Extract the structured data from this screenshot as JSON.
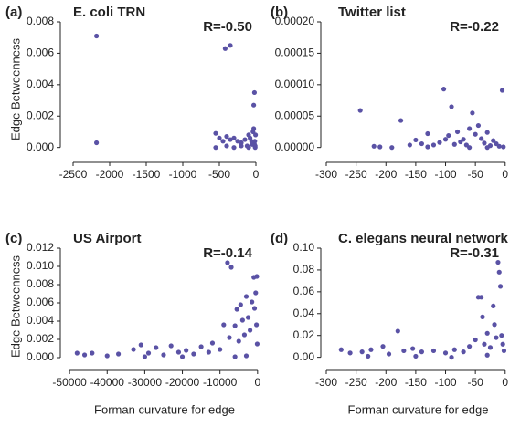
{
  "chart_data": [
    {
      "type": "scatter",
      "panel": "(a)",
      "title": "E. coli TRN",
      "annotation": "R=-0.50",
      "ylabel": "Edge Betweenness",
      "color": "#5a52a5",
      "xlim": [
        -2600,
        100
      ],
      "xticks": [
        -2500,
        -2000,
        -1500,
        -1000,
        -500,
        0
      ],
      "ylim": [
        -0.0006,
        0.008
      ],
      "yticks": [
        {
          "value": 0,
          "label": "0.000"
        },
        {
          "value": 0.002,
          "label": "0.002"
        },
        {
          "value": 0.004,
          "label": "0.004"
        },
        {
          "value": 0.006,
          "label": "0.006"
        },
        {
          "value": 0.008,
          "label": "0.008"
        }
      ],
      "x": [
        -2180,
        -2180,
        -420,
        -350,
        -20,
        -30,
        -550,
        -500,
        -450,
        -400,
        -350,
        -300,
        -250,
        -200,
        -150,
        -100,
        -80,
        -60,
        -40,
        -20,
        -10,
        -5,
        -50,
        -120,
        -30,
        -15,
        -300,
        -200,
        -550,
        -400,
        -100,
        -10
      ],
      "values": [
        0.0071,
        0.0003,
        0.0063,
        0.0065,
        0.0035,
        0.0027,
        0.0009,
        0.0006,
        0.0004,
        0.0007,
        0.0005,
        0.0006,
        0.0004,
        0.0003,
        0.0005,
        0.0008,
        0.0006,
        0.0004,
        0.001,
        0.0002,
        0.0001,
        0.0008,
        0.0002,
        0.0001,
        0.0012,
        0.0004,
        0,
        0.0001,
        0,
        0.0001,
        0,
        0
      ]
    },
    {
      "type": "scatter",
      "panel": "(b)",
      "title": "Twitter list",
      "annotation": "R=-0.22",
      "color": "#5a52a5",
      "xlim": [
        -300,
        8
      ],
      "xticks": [
        -300,
        -250,
        -200,
        -150,
        -100,
        -50,
        0
      ],
      "ylim": [
        -1.5e-05,
        0.0002
      ],
      "yticks": [
        {
          "value": 0,
          "label": "0.00000"
        },
        {
          "value": 5e-05,
          "label": "0.00005"
        },
        {
          "value": 0.0001,
          "label": "0.00010"
        },
        {
          "value": 0.00015,
          "label": "0.00015"
        },
        {
          "value": 0.0002,
          "label": "0.00020"
        }
      ],
      "x": [
        -243,
        -220,
        -210,
        -175,
        -160,
        -150,
        -140,
        -130,
        -120,
        -110,
        -103,
        -100,
        -95,
        -90,
        -85,
        -80,
        -75,
        -70,
        -65,
        -60,
        -55,
        -50,
        -45,
        -40,
        -35,
        -30,
        -25,
        -20,
        -15,
        -10,
        -5,
        -3,
        -130,
        -60,
        -30,
        -190
      ],
      "values": [
        5.9e-05,
        2e-06,
        1e-06,
        4.3e-05,
        4e-06,
        1.2e-05,
        6e-06,
        2.2e-05,
        4e-06,
        8e-06,
        9.3e-05,
        1.3e-05,
        1.9e-05,
        6.5e-05,
        5e-06,
        2.5e-05,
        9e-06,
        1.3e-05,
        4e-06,
        3e-05,
        5.5e-05,
        2.1e-05,
        3.5e-05,
        1.4e-05,
        7e-06,
        2.4e-05,
        3e-06,
        1.1e-05,
        6e-06,
        2e-06,
        9.1e-05,
        1e-06,
        1e-06,
        0,
        0,
        0
      ]
    },
    {
      "type": "scatter",
      "panel": "(c)",
      "title": "US Airport",
      "annotation": "R=-0.14",
      "ylabel": "Edge Betweenness",
      "xlabel": "Forman curvature for edge",
      "color": "#5a52a5",
      "xlim": [
        -51000,
        1500
      ],
      "xticks": [
        -50000,
        -40000,
        -30000,
        -20000,
        -10000,
        0
      ],
      "ylim": [
        -0.0008,
        0.012
      ],
      "yticks": [
        {
          "value": 0,
          "label": "0.000"
        },
        {
          "value": 0.002,
          "label": "0.002"
        },
        {
          "value": 0.004,
          "label": "0.004"
        },
        {
          "value": 0.006,
          "label": "0.006"
        },
        {
          "value": 0.008,
          "label": "0.008"
        },
        {
          "value": 0.01,
          "label": "0.010"
        },
        {
          "value": 0.012,
          "label": "0.012"
        }
      ],
      "x": [
        -48000,
        -46000,
        -44000,
        -40000,
        -37000,
        -33000,
        -31000,
        -29000,
        -27000,
        -25000,
        -23000,
        -21000,
        -19000,
        -17000,
        -15000,
        -13000,
        -12000,
        -10000,
        -9000,
        -8000,
        -7500,
        -7000,
        -6000,
        -5500,
        -5000,
        -4500,
        -4000,
        -3500,
        -3000,
        -2500,
        -2000,
        -1500,
        -1000,
        -800,
        -500,
        -300,
        -200,
        -100,
        -6000,
        -3000,
        -20000,
        -30000
      ],
      "values": [
        0.0005,
        0.0003,
        0.0005,
        0.0002,
        0.0004,
        0.0009,
        0.0014,
        0.0005,
        0.0011,
        0.0003,
        0.0013,
        0.0006,
        0.0008,
        0.0004,
        0.0012,
        0.0006,
        0.0016,
        0.0009,
        0.0036,
        0.0104,
        0.0022,
        0.0099,
        0.0035,
        0.0053,
        0.0018,
        0.0058,
        0.0041,
        0.0025,
        0.0067,
        0.0044,
        0.003,
        0.0061,
        0.0088,
        0.0054,
        0.0071,
        0.0036,
        0.0089,
        0.0015,
        0.0001,
        0.0002,
        0.0001,
        0.0001
      ]
    },
    {
      "type": "scatter",
      "panel": "(d)",
      "title": "C. elegans neural network",
      "annotation": "R=-0.31",
      "xlabel": "Forman curvature for edge",
      "color": "#5a52a5",
      "xlim": [
        -300,
        8
      ],
      "xticks": [
        -300,
        -250,
        -200,
        -150,
        -100,
        -50,
        0
      ],
      "ylim": [
        -0.007,
        0.1
      ],
      "yticks": [
        {
          "value": 0,
          "label": "0.00"
        },
        {
          "value": 0.02,
          "label": "0.02"
        },
        {
          "value": 0.04,
          "label": "0.04"
        },
        {
          "value": 0.06,
          "label": "0.06"
        },
        {
          "value": 0.08,
          "label": "0.08"
        },
        {
          "value": 0.1,
          "label": "0.10"
        }
      ],
      "x": [
        -275,
        -260,
        -240,
        -225,
        -205,
        -195,
        -180,
        -170,
        -155,
        -140,
        -120,
        -100,
        -85,
        -70,
        -60,
        -50,
        -45,
        -40,
        -38,
        -35,
        -30,
        -25,
        -20,
        -18,
        -15,
        -12,
        -10,
        -8,
        -6,
        -4,
        -2,
        -230,
        -150,
        -90,
        -30
      ],
      "values": [
        0.007,
        0.004,
        0.005,
        0.007,
        0.01,
        0.003,
        0.024,
        0.006,
        0.008,
        0.005,
        0.006,
        0.004,
        0.007,
        0.005,
        0.01,
        0.016,
        0.055,
        0.055,
        0.037,
        0.012,
        0.022,
        0.009,
        0.047,
        0.03,
        0.018,
        0.087,
        0.078,
        0.065,
        0.02,
        0.012,
        0.006,
        0.001,
        0.001,
        0,
        0.002
      ]
    }
  ]
}
